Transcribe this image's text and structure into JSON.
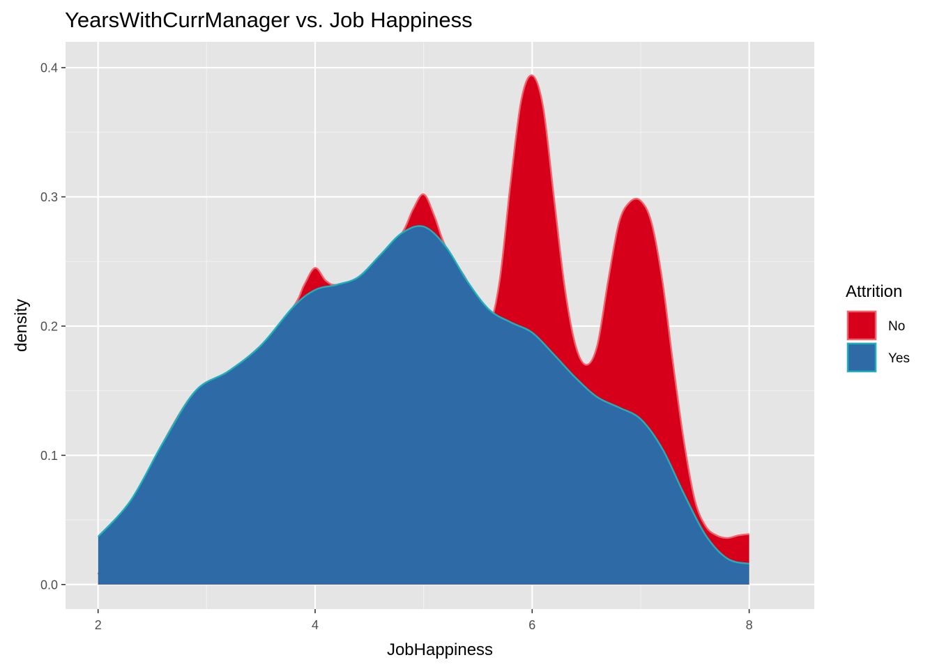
{
  "chart_data": {
    "type": "area",
    "title": "YearsWithCurrManager vs. Job Happiness",
    "xlabel": "JobHappiness",
    "ylabel": "density",
    "xlim": [
      1.7,
      8.6
    ],
    "ylim": [
      -0.019,
      0.42
    ],
    "x_ticks": [
      2,
      4,
      6,
      8
    ],
    "x_tick_labels": [
      "2",
      "4",
      "6",
      "8"
    ],
    "y_ticks": [
      0.0,
      0.1,
      0.2,
      0.3,
      0.4
    ],
    "y_tick_labels": [
      "0.0",
      "0.1",
      "0.2",
      "0.3",
      "0.4"
    ],
    "grid": true,
    "legend": {
      "title": "Attrition",
      "position": "right"
    },
    "series": [
      {
        "name": "No",
        "fill": "#d7001b",
        "stroke": "#f0636c",
        "x": [
          2.0,
          2.3,
          2.6,
          2.9,
          3.2,
          3.5,
          3.8,
          3.9,
          4.0,
          4.1,
          4.2,
          4.4,
          4.6,
          4.8,
          4.9,
          5.0,
          5.1,
          5.2,
          5.4,
          5.5,
          5.6,
          5.7,
          5.8,
          5.9,
          6.0,
          6.1,
          6.2,
          6.3,
          6.4,
          6.5,
          6.6,
          6.7,
          6.8,
          6.9,
          7.0,
          7.1,
          7.2,
          7.3,
          7.4,
          7.5,
          7.6,
          7.7,
          7.8,
          7.9,
          8.0
        ],
        "y": [
          0.008,
          0.06,
          0.11,
          0.15,
          0.165,
          0.185,
          0.215,
          0.232,
          0.245,
          0.235,
          0.232,
          0.238,
          0.255,
          0.272,
          0.29,
          0.302,
          0.285,
          0.262,
          0.235,
          0.215,
          0.2,
          0.235,
          0.31,
          0.375,
          0.394,
          0.37,
          0.3,
          0.23,
          0.185,
          0.17,
          0.185,
          0.235,
          0.28,
          0.296,
          0.297,
          0.28,
          0.235,
          0.17,
          0.11,
          0.065,
          0.045,
          0.038,
          0.036,
          0.038,
          0.039
        ]
      },
      {
        "name": "Yes",
        "fill": "#2d6aa6",
        "stroke": "#1fb1bb",
        "x": [
          2.0,
          2.3,
          2.6,
          2.9,
          3.2,
          3.5,
          3.8,
          4.0,
          4.2,
          4.4,
          4.6,
          4.8,
          5.0,
          5.2,
          5.4,
          5.6,
          5.8,
          6.0,
          6.2,
          6.4,
          6.6,
          6.8,
          7.0,
          7.2,
          7.4,
          7.6,
          7.8,
          8.0
        ],
        "y": [
          0.037,
          0.065,
          0.11,
          0.15,
          0.165,
          0.185,
          0.215,
          0.228,
          0.232,
          0.238,
          0.255,
          0.272,
          0.277,
          0.262,
          0.235,
          0.213,
          0.203,
          0.195,
          0.178,
          0.16,
          0.145,
          0.137,
          0.128,
          0.105,
          0.07,
          0.038,
          0.02,
          0.016
        ]
      }
    ]
  }
}
